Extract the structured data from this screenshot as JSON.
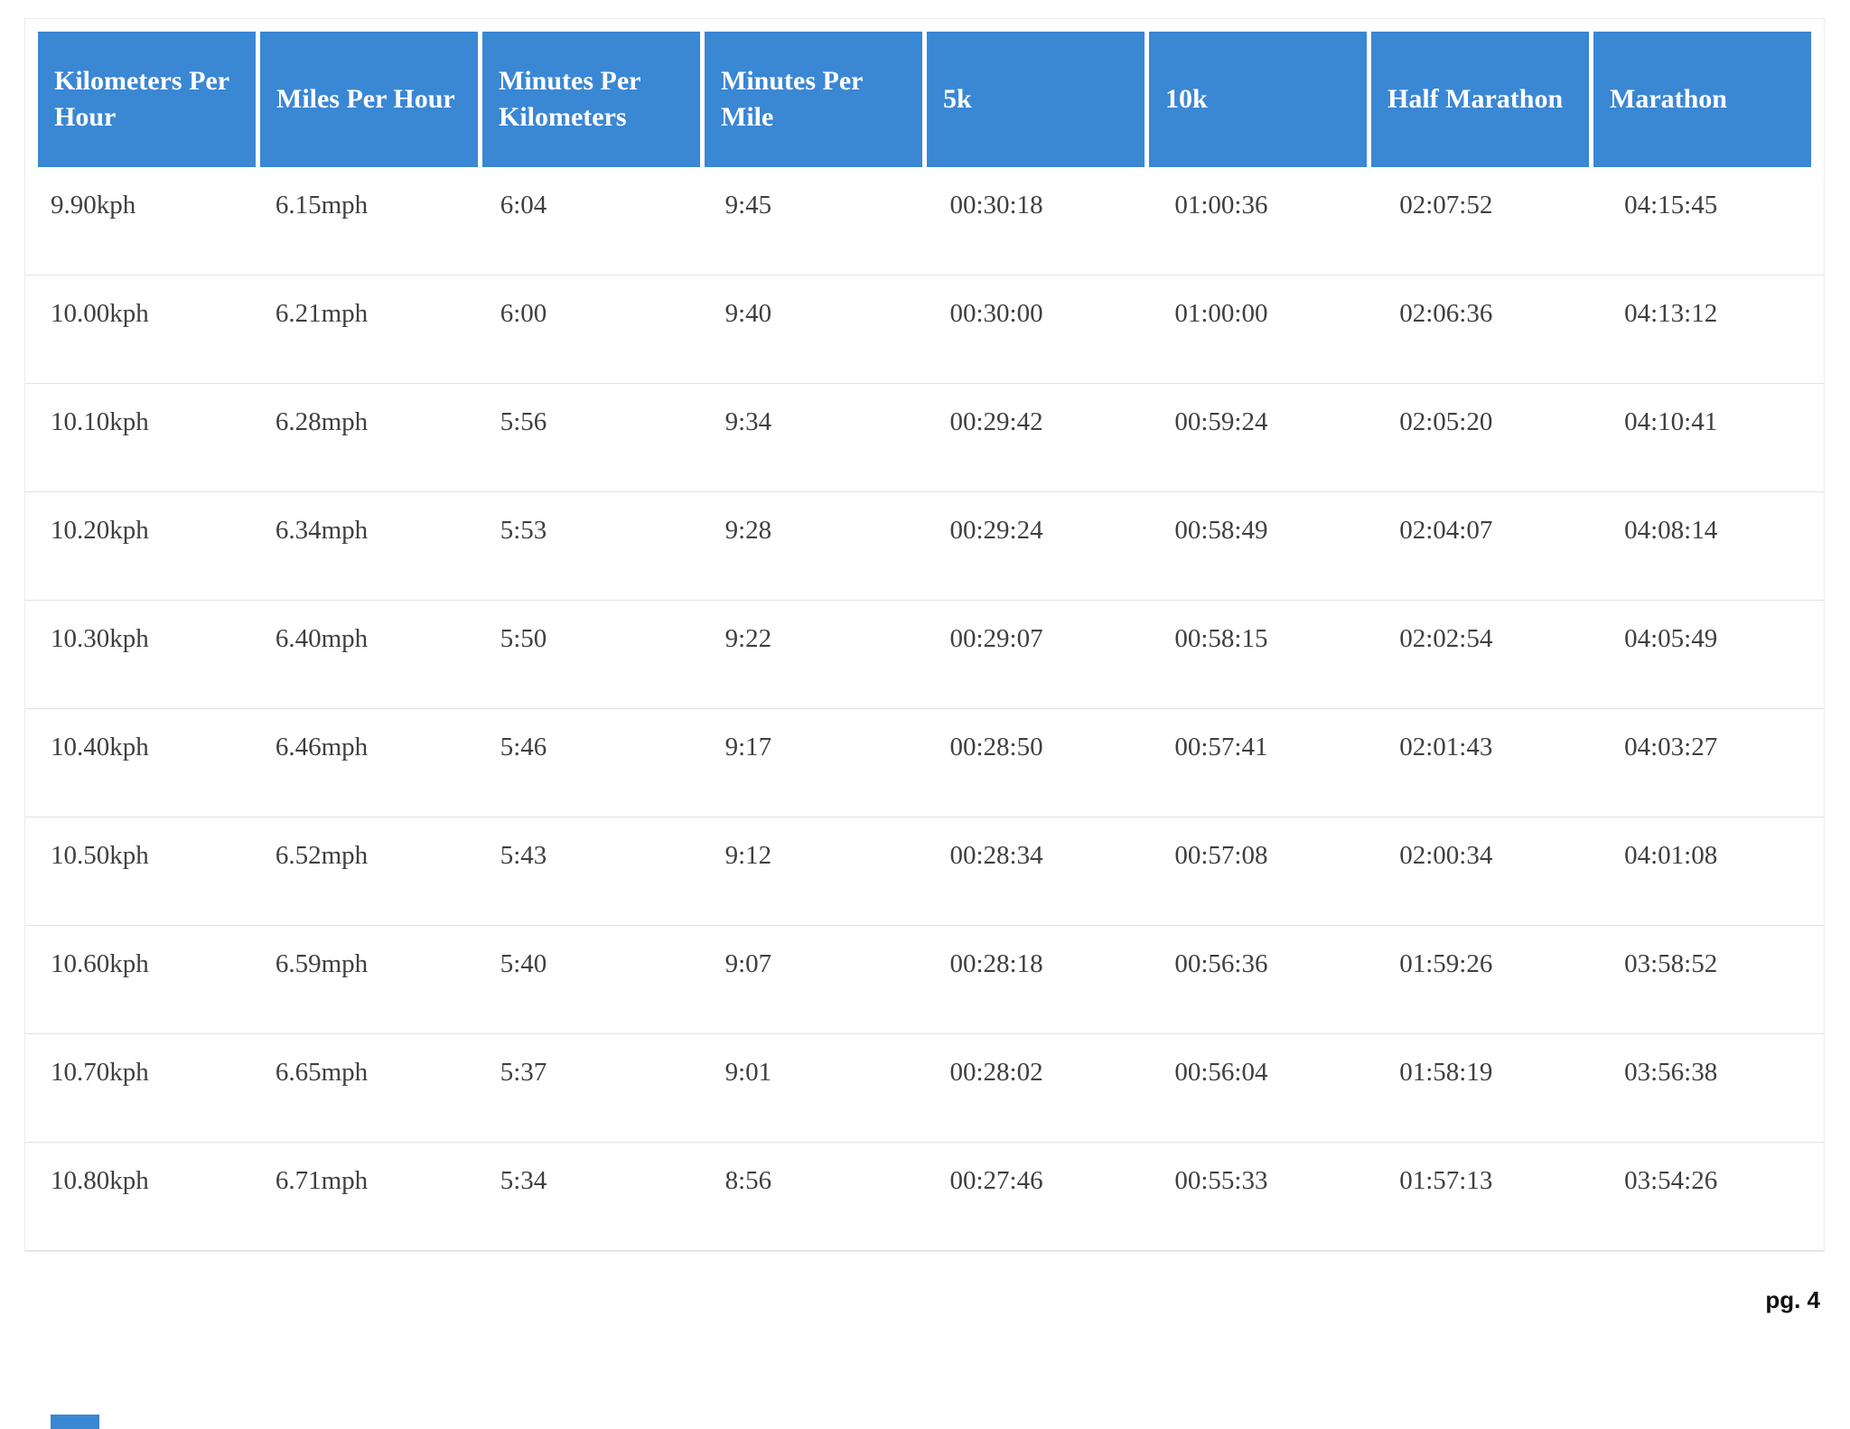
{
  "colors": {
    "header_bg": "#3a87d4",
    "header_text": "#ffffff",
    "body_text": "#3f3f3f",
    "row_border": "#e2e2e2"
  },
  "page": {
    "footer": {
      "page_label": "pg. 4"
    }
  },
  "table": {
    "headers": [
      "Kilometers Per Hour",
      "Miles Per Hour",
      "Minutes Per Kilometers",
      "Minutes Per Mile",
      "5k",
      "10k",
      "Half Marathon",
      "Marathon"
    ],
    "rows": [
      [
        "9.90kph",
        "6.15mph",
        "6:04",
        "9:45",
        "00:30:18",
        "01:00:36",
        "02:07:52",
        "04:15:45"
      ],
      [
        "10.00kph",
        "6.21mph",
        "6:00",
        "9:40",
        "00:30:00",
        "01:00:00",
        "02:06:36",
        "04:13:12"
      ],
      [
        "10.10kph",
        "6.28mph",
        "5:56",
        "9:34",
        "00:29:42",
        "00:59:24",
        "02:05:20",
        "04:10:41"
      ],
      [
        "10.20kph",
        "6.34mph",
        "5:53",
        "9:28",
        "00:29:24",
        "00:58:49",
        "02:04:07",
        "04:08:14"
      ],
      [
        "10.30kph",
        "6.40mph",
        "5:50",
        "9:22",
        "00:29:07",
        "00:58:15",
        "02:02:54",
        "04:05:49"
      ],
      [
        "10.40kph",
        "6.46mph",
        "5:46",
        "9:17",
        "00:28:50",
        "00:57:41",
        "02:01:43",
        "04:03:27"
      ],
      [
        "10.50kph",
        "6.52mph",
        "5:43",
        "9:12",
        "00:28:34",
        "00:57:08",
        "02:00:34",
        "04:01:08"
      ],
      [
        "10.60kph",
        "6.59mph",
        "5:40",
        "9:07",
        "00:28:18",
        "00:56:36",
        "01:59:26",
        "03:58:52"
      ],
      [
        "10.70kph",
        "6.65mph",
        "5:37",
        "9:01",
        "00:28:02",
        "00:56:04",
        "01:58:19",
        "03:56:38"
      ],
      [
        "10.80kph",
        "6.71mph",
        "5:34",
        "8:56",
        "00:27:46",
        "00:55:33",
        "01:57:13",
        "03:54:26"
      ]
    ]
  }
}
